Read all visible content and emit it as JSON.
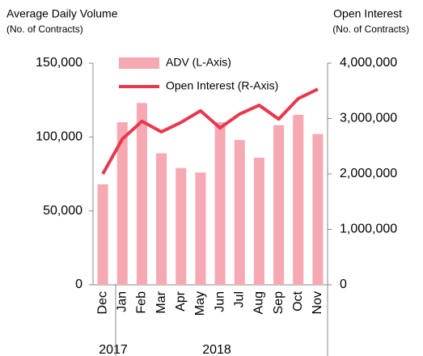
{
  "chart_data": {
    "type": "bar_line",
    "title": "Average Daily Volume",
    "subtitle": "(No. of Contracts)",
    "y2_title": "Open Interest",
    "y2_subtitle": "(No. of Contracts)",
    "categories": [
      "Dec",
      "Jan",
      "Feb",
      "Mar",
      "Apr",
      "May",
      "Jun",
      "Jul",
      "Aug",
      "Sep",
      "Oct",
      "Nov"
    ],
    "year_labels": [
      "2017",
      "2018"
    ],
    "series": [
      {
        "name": "ADV (L-Axis)",
        "type": "bar",
        "color": "#f6a9b3",
        "values": [
          68000,
          110000,
          123000,
          89000,
          79000,
          76000,
          110000,
          98000,
          86000,
          108000,
          115000,
          102000
        ]
      },
      {
        "name": "Open Interest (R-Axis)",
        "type": "line",
        "axis": "y2",
        "color": "#e8384f",
        "values": [
          2000000,
          2630000,
          2950000,
          2760000,
          2930000,
          3140000,
          2830000,
          3080000,
          3240000,
          2990000,
          3360000,
          3530000
        ]
      }
    ],
    "ylim": [
      0,
      150000
    ],
    "yticks": [
      0,
      {
        "value": 50000,
        "label": "50,000"
      },
      {
        "value": 100000,
        "label": "100,000"
      },
      {
        "value": 150000,
        "label": "150,000"
      }
    ],
    "y2lim": [
      0,
      4000000
    ],
    "y2ticks": [
      0,
      {
        "value": 1000000,
        "label": "1,000,000"
      },
      {
        "value": 2000000,
        "label": "2,000,000"
      },
      {
        "value": 3000000,
        "label": "3,000,000"
      },
      {
        "value": 4000000,
        "label": "4,000,000"
      }
    ]
  }
}
